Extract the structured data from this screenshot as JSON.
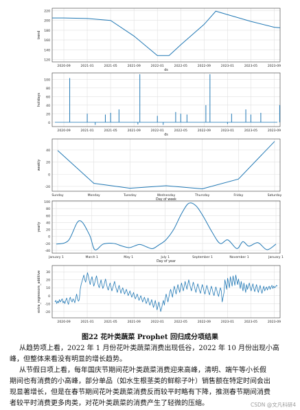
{
  "figure": {
    "caption": "图22 花叶类蔬菜 Prophet 回归成分项结果",
    "panels": [
      {
        "name": "trend",
        "ylabel": "trend",
        "xlabel": "ds",
        "yticks": [
          "120",
          "140",
          "160",
          "180",
          "200",
          "220"
        ],
        "xticks": [
          "2020-09",
          "2021-01",
          "2021-05",
          "2021-09",
          "2022-01",
          "2022-05",
          "2022-09",
          "2023-01",
          "2023-05",
          "2023-09"
        ]
      },
      {
        "name": "holidays",
        "ylabel": "holidays",
        "xlabel": "ds",
        "yticks": [
          "0",
          "20",
          "40",
          "60",
          "80",
          "100"
        ],
        "xticks": [
          "2020-09",
          "2021-01",
          "2021-05",
          "2021-09",
          "2022-01",
          "2022-05",
          "2022-09",
          "2023-01",
          "2023-05",
          "2023-09"
        ]
      },
      {
        "name": "weekly",
        "ylabel": "weekly",
        "xlabel": "Day of week",
        "yticks": [
          "-20",
          "0",
          "20",
          "40"
        ],
        "xticks": [
          "Sunday",
          "Monday",
          "Tuesday",
          "Wednesday",
          "Thursday",
          "Friday",
          "Saturday"
        ]
      },
      {
        "name": "yearly",
        "ylabel": "yearly",
        "xlabel": "Day of year",
        "yticks": [
          "-40",
          "-20",
          "0",
          "20",
          "40",
          "60",
          "80",
          "100"
        ],
        "xticks": [
          "January 1",
          "March 1",
          "May 1",
          "July 1",
          "September 1",
          "November 1",
          "January 1"
        ]
      },
      {
        "name": "extra_regressors_additive",
        "ylabel": "extra_regressors_additive",
        "xlabel": "",
        "yticks": [
          "-20",
          "-10",
          "0",
          "10",
          "20",
          "30"
        ],
        "xticks": [
          "2020-09",
          "2021-01",
          "2021-05",
          "2021-09",
          "2022-01",
          "2022-05",
          "2022-09",
          "2023-01",
          "2023-05",
          "2023-09"
        ]
      }
    ]
  },
  "chart_data": [
    {
      "type": "line",
      "title": "",
      "ylabel": "trend",
      "xlabel": "ds",
      "ylim": [
        115,
        225
      ],
      "x": [
        "2020-07",
        "2020-09",
        "2021-01",
        "2021-05",
        "2021-09",
        "2022-01",
        "2022-03",
        "2022-05",
        "2022-09",
        "2022-11",
        "2023-01",
        "2023-05",
        "2023-09",
        "2023-10"
      ],
      "values": [
        205,
        205,
        204,
        200,
        168,
        128,
        128,
        150,
        192,
        219,
        212,
        198,
        186,
        185
      ]
    },
    {
      "type": "bar",
      "title": "",
      "ylabel": "holidays",
      "xlabel": "ds",
      "ylim": [
        -10,
        115
      ],
      "x": [
        "2020-10-01",
        "2021-01-01",
        "2021-02-12",
        "2021-04-04",
        "2021-05-01",
        "2021-06-14",
        "2021-09-21",
        "2021-10-01",
        "2022-01-01",
        "2022-02-01",
        "2022-04-05",
        "2022-05-01",
        "2022-06-03",
        "2022-09-10",
        "2022-10-01",
        "2023-01-01",
        "2023-01-22",
        "2023-04-05",
        "2023-05-01",
        "2023-06-22",
        "2023-09-29"
      ],
      "values": [
        103,
        20,
        -6,
        18,
        22,
        30,
        -5,
        112,
        15,
        -6,
        24,
        20,
        18,
        40,
        112,
        -4,
        20,
        30,
        18,
        22,
        40
      ]
    },
    {
      "type": "line",
      "title": "",
      "ylabel": "weekly",
      "xlabel": "Day of week",
      "ylim": [
        -28,
        58
      ],
      "categories": [
        "Sunday",
        "Monday",
        "Tuesday",
        "Wednesday",
        "Thursday",
        "Friday",
        "Saturday"
      ],
      "values": [
        39,
        -15,
        -23,
        -19,
        -24,
        -8,
        54
      ]
    },
    {
      "type": "line",
      "title": "",
      "ylabel": "yearly",
      "xlabel": "Day of year",
      "ylim": [
        -48,
        102
      ],
      "x": [
        0,
        20,
        38,
        55,
        64,
        78,
        95,
        110,
        122,
        138,
        150,
        160,
        170,
        182,
        195,
        208,
        220,
        232,
        244,
        258,
        272,
        285,
        300,
        310,
        320,
        335,
        350,
        365
      ],
      "values": [
        -22,
        -12,
        45,
        5,
        -38,
        -22,
        -20,
        -28,
        -32,
        -23,
        -30,
        -35,
        -25,
        -10,
        20,
        65,
        95,
        88,
        58,
        15,
        -20,
        -10,
        -35,
        -15,
        -28,
        -18,
        -38,
        -22
      ]
    },
    {
      "type": "line",
      "title": "",
      "ylabel": "extra_regressors_additive",
      "xlabel": "",
      "ylim": [
        -28,
        38
      ],
      "x_start": "2020-07",
      "x_end": "2023-10",
      "series": [
        {
          "values": [
            -8,
            -6,
            -10,
            -7,
            -9,
            -5,
            -8,
            -6,
            -4,
            -9,
            -7,
            -10,
            -6,
            -3,
            -8,
            -11,
            -5,
            -2,
            -6,
            -8,
            -4,
            -6,
            -9,
            -3,
            2,
            -4,
            -7,
            -5,
            8,
            14,
            18,
            22,
            26,
            20,
            17,
            23,
            29,
            25,
            19,
            14,
            20,
            24,
            18,
            12,
            16,
            21,
            25,
            19,
            13,
            10,
            15,
            20,
            14,
            9,
            12,
            17,
            21,
            15,
            10,
            7,
            12,
            16,
            11,
            6,
            10,
            14,
            18,
            12,
            8,
            4,
            9,
            13,
            8,
            3,
            7,
            10,
            6,
            2,
            5,
            8,
            4,
            0,
            3,
            6,
            2,
            -2,
            1,
            4,
            -1,
            -4,
            -1,
            2,
            -2,
            -6,
            -3,
            0,
            -4,
            -8,
            -5,
            -2,
            -6,
            -10,
            -7,
            -3,
            -8,
            -12,
            -9,
            -5,
            -10,
            -15,
            -11,
            -6,
            -12,
            -18,
            -13,
            -8,
            -14,
            -20,
            -16,
            -10,
            -6,
            -12,
            -4,
            2,
            -3,
            -8,
            -2,
            4,
            8,
            3,
            -2,
            6,
            12,
            7,
            2,
            8,
            14,
            9,
            4,
            10,
            16,
            11,
            6,
            12,
            18,
            13,
            8,
            14,
            20,
            15,
            10,
            6,
            12,
            17,
            13,
            8,
            4,
            10,
            15,
            11,
            6,
            3,
            9,
            14,
            10,
            5,
            2,
            8,
            13,
            9,
            4,
            1,
            7,
            12,
            8,
            3,
            0,
            6,
            11,
            7,
            2,
            -1,
            5,
            10,
            6,
            -8,
            -2,
            4,
            20,
            14,
            8,
            22,
            16,
            10,
            24,
            18,
            12,
            25,
            19,
            13,
            26,
            20,
            14,
            21,
            15,
            9,
            18,
            12,
            6,
            16,
            10,
            4,
            14,
            8,
            12,
            16,
            10,
            6,
            11,
            15,
            9,
            5,
            10,
            14,
            8,
            4,
            9,
            13,
            7,
            3,
            8,
            12,
            6,
            9,
            11,
            7,
            10,
            12,
            8,
            11,
            13,
            9,
            12,
            10,
            11,
            13,
            12
          ]
        }
      ]
    }
  ],
  "paragraphs": [
    [
      "从趋势项上看，2022 年 1 月份花叶类蔬菜消费出现低谷，2022 年 10 月份出现小高",
      "峰，但整体来看没有明显的增长趋势。"
    ],
    [
      "从节假日项上看，每年国庆节期间花叶类蔬菜消费迎来高峰，清明、端午等小长假",
      "期间也有消费的小高峰，部分单品（如水生根茎类的鲜粽子叶）销售额在特定时间会出",
      "现显著增长，但是在春节期间花叶类蔬菜消费反而较平时略有下降，推测春节期间消费",
      "者较平时消费更多肉类，对花叶类蔬菜的消费产生了轻微的压缩。"
    ]
  ],
  "watermark": "CSDN @文凡科研4"
}
